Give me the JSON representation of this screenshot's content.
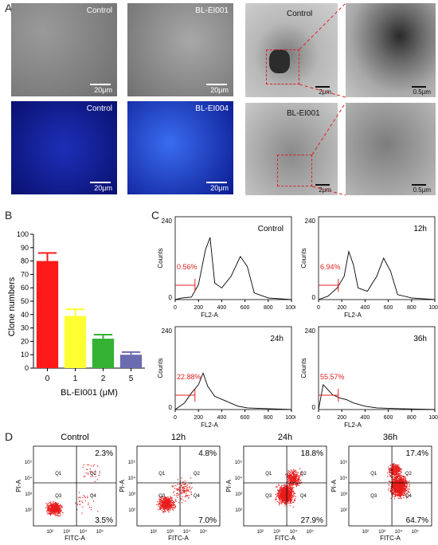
{
  "panel_a": {
    "letter": "A",
    "micro_tiles": [
      {
        "label": "Control",
        "scale": "20μm"
      },
      {
        "label": "BL-EI001",
        "scale": "20μm"
      },
      {
        "label": "Control",
        "scale": "20μm"
      },
      {
        "label": "BL-EI004",
        "scale": "20μm"
      }
    ],
    "em_tiles": [
      {
        "label": "Control",
        "scale": "2μm"
      },
      {
        "label": "",
        "scale": "0.5μm"
      },
      {
        "label": "BL-EI001",
        "scale": "2μm"
      },
      {
        "label": "",
        "scale": "0.5μm"
      }
    ]
  },
  "panel_b": {
    "letter": "B"
  },
  "panel_c": {
    "letter": "C",
    "hists": [
      {
        "title": "Control",
        "pct": "0.56%"
      },
      {
        "title": "12h",
        "pct": "6.94%"
      },
      {
        "title": "24h",
        "pct": "22.88%"
      },
      {
        "title": "36h",
        "pct": "55.57%"
      }
    ],
    "ylabel": "Counts",
    "xlabel": "FL2-A",
    "ymax": "240",
    "ymin": "0",
    "xticks": [
      "0",
      "200",
      "400",
      "600",
      "800",
      "1000"
    ]
  },
  "panel_d": {
    "letter": "D",
    "plots": [
      {
        "title": "Control",
        "q2": "2.3%",
        "q4": "3.5%"
      },
      {
        "title": "12h",
        "q2": "4.8%",
        "q4": "7.0%"
      },
      {
        "title": "24h",
        "q2": "18.8%",
        "q4": "27.9%"
      },
      {
        "title": "36h",
        "q2": "17.4%",
        "q4": "64.7%"
      }
    ],
    "ylabel": "PI-A",
    "xlabel": "FITC-A",
    "quadrants": [
      "Q1",
      "Q2",
      "Q3",
      "Q4"
    ],
    "ticks": [
      "10²",
      "10³",
      "10⁴",
      "10⁵"
    ]
  },
  "chart_data": {
    "type": "bar",
    "categories": [
      "0",
      "1",
      "2",
      "5"
    ],
    "values": [
      80,
      39,
      22,
      10
    ],
    "errors": [
      6,
      5,
      3,
      2
    ],
    "colors": [
      "#ff1a1a",
      "#ffff33",
      "#33b233",
      "#6b6bb0"
    ],
    "xlabel": "BL-EI001 (μM)",
    "ylabel": "Clone numbers",
    "ylim": [
      0,
      100
    ],
    "yticks": [
      0,
      10,
      20,
      30,
      40,
      50,
      60,
      70,
      80,
      90,
      100
    ]
  }
}
